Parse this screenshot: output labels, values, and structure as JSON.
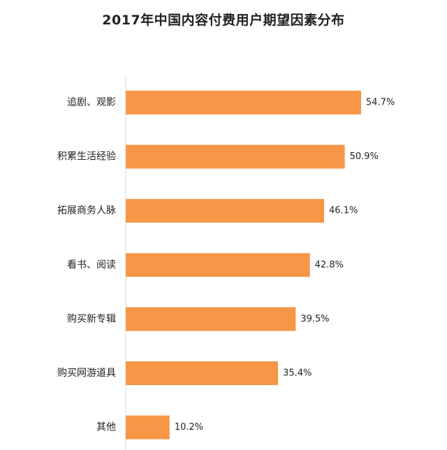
{
  "chart_data": {
    "type": "bar",
    "orientation": "horizontal",
    "title": "2017年中国内容付费用户期望因素分布",
    "categories": [
      "追剧、观影",
      "积累生活经验",
      "拓展商务人脉",
      "看书、阅读",
      "购买新专辑",
      "购买网游道具",
      "其他"
    ],
    "values": [
      54.7,
      50.9,
      46.1,
      42.8,
      39.5,
      35.4,
      10.2
    ],
    "value_labels": [
      "54.7%",
      "50.9%",
      "46.1%",
      "42.8%",
      "39.5%",
      "35.4%",
      "10.2%"
    ],
    "unit": "%",
    "bar_color": "#F79646",
    "grid": false,
    "legend": "none"
  }
}
